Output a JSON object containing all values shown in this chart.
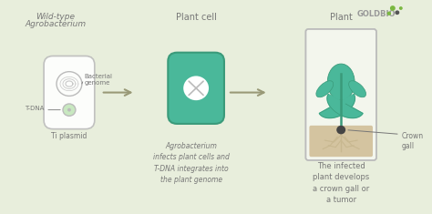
{
  "bg_color": "#e8eedc",
  "green_color": "#4ab89a",
  "dark_green": "#3a9a7a",
  "arrow_color": "#999977",
  "text_color": "#777777",
  "light_gray": "#bbbbbb",
  "tan_color": "#d4c4a0",
  "goldbio_text": "GOLDBIO",
  "label_wild": "Wild-type",
  "label_agro": "Agrobacterium",
  "label_pcell": "Plant cell",
  "label_plant": "Plant",
  "label_tdna": "T-DNA",
  "label_bact": "Bacterial\ngenome",
  "label_tiplasmid": "Ti plasmid",
  "label_infects": "Agrobacterium\ninfects plant cells and\nT-DNA integrates into\nthe plant genome",
  "label_crown": "Crown\ngall",
  "label_infected": "The infected\nplant develops\na crown gall or\na tumor"
}
